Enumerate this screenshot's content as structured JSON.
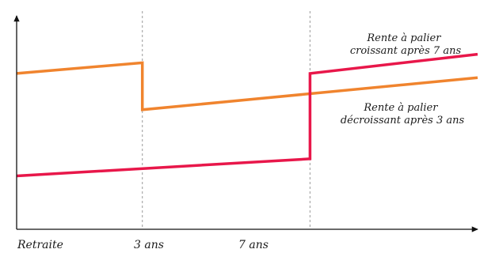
{
  "chart_data": {
    "type": "line",
    "title": "",
    "xlabel": "",
    "ylabel": "",
    "grid": false,
    "x_ticks": [
      {
        "label": "Retraite",
        "x": 0
      },
      {
        "label": "3 ans",
        "x": 3
      },
      {
        "label": "7 ans",
        "x": 7
      }
    ],
    "reference_lines_x": [
      3,
      7
    ],
    "xlim": [
      0,
      11
    ],
    "ylim": [
      0,
      100
    ],
    "series": [
      {
        "name": "Rente à palier décroissant après 3 ans",
        "label_lines": [
          "Rente à palier",
          "décroissant après 3 ans"
        ],
        "color": "#F0842E",
        "points": [
          [
            0,
            73
          ],
          [
            3,
            78
          ],
          [
            3,
            56
          ],
          [
            11,
            71
          ]
        ]
      },
      {
        "name": "Rente à palier croissant après 7 ans",
        "label_lines": [
          "Rente à palier",
          "croissant après 7 ans"
        ],
        "color": "#E8174A",
        "points": [
          [
            0,
            25
          ],
          [
            7,
            33
          ],
          [
            7,
            73
          ],
          [
            11,
            82
          ]
        ]
      }
    ]
  }
}
